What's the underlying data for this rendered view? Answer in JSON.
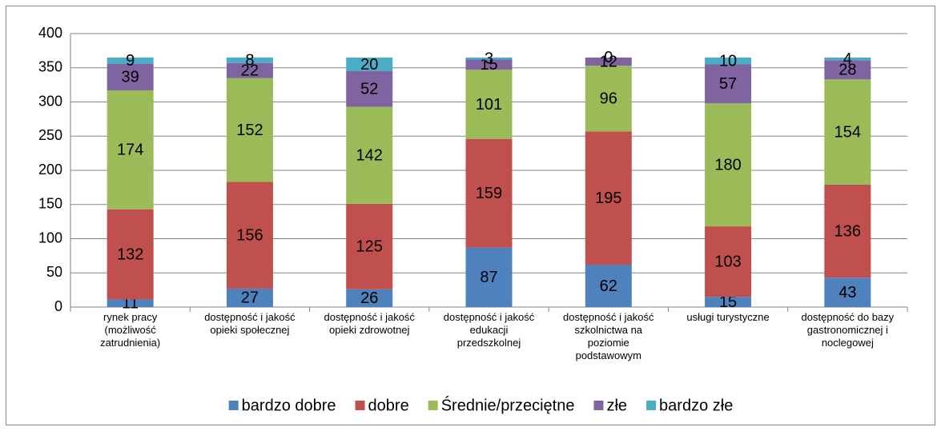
{
  "chart_data": {
    "type": "stacked_bar",
    "categories": [
      "rynek pracy\n(możliwość\nzatrudnienia)",
      "dostępność i jakość\nopieki społecznej",
      "dostępność i jakość\nopieki zdrowotnej",
      "dostępność i jakość\nedukacji\nprzedszkolnej",
      "dostępność i jakość\nszkolnictwa na\npoziomie\npodstawowym",
      "usługi turystyczne",
      "dostępność do bazy\ngastronomicznej i\nnoclegowej"
    ],
    "series": [
      {
        "name": "bardzo dobre",
        "color": "#4f81bd",
        "values": [
          11,
          27,
          26,
          87,
          62,
          15,
          43
        ]
      },
      {
        "name": "dobre",
        "color": "#c0504d",
        "values": [
          132,
          156,
          125,
          159,
          195,
          103,
          136
        ]
      },
      {
        "name": "Średnie/przeciętne",
        "color": "#9bbb59",
        "values": [
          174,
          152,
          142,
          101,
          96,
          180,
          154
        ]
      },
      {
        "name": "złe",
        "color": "#8064a2",
        "values": [
          39,
          22,
          52,
          15,
          12,
          57,
          28
        ]
      },
      {
        "name": "bardzo złe",
        "color": "#4bacc6",
        "values": [
          9,
          8,
          20,
          3,
          0,
          10,
          4
        ]
      }
    ],
    "ylim": [
      0,
      400
    ],
    "yticks": [
      0,
      50,
      100,
      150,
      200,
      250,
      300,
      350,
      400
    ],
    "grid": true,
    "legend": "bottom"
  }
}
